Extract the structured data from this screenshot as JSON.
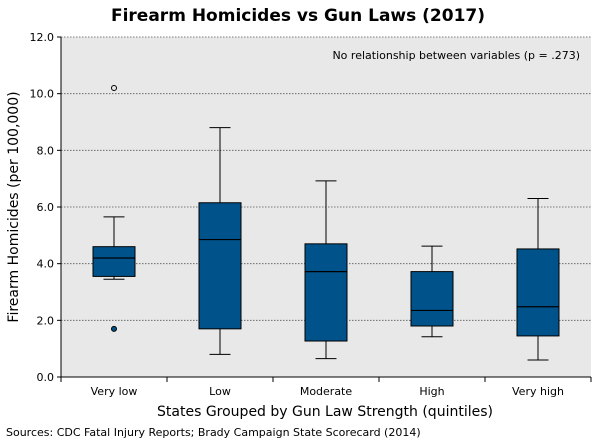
{
  "chart_data": {
    "type": "box",
    "title": "Firearm Homicides vs Gun Laws (2017)",
    "xlabel": "States Grouped by Gun Law Strength (quintiles)",
    "ylabel": "Firearm Homicides (per 100,000)",
    "ylim": [
      0,
      12
    ],
    "yticks": [
      0,
      2,
      4,
      6,
      8,
      10,
      12
    ],
    "ytick_labels": [
      "0.0",
      "2.0",
      "4.0",
      "6.0",
      "8.0",
      "10.0",
      "12.0"
    ],
    "grid": true,
    "annotation": "No relationship between variables (p = .273)",
    "source": "Sources: CDC Fatal Injury Reports; Brady Campaign State Scorecard (2014)",
    "box_color": "#00538A",
    "background_color": "#E8E8E8",
    "categories": [
      "Very low",
      "Low",
      "Moderate",
      "High",
      "Very high"
    ],
    "boxes": [
      {
        "category": "Very low",
        "whisker_low": 3.45,
        "q1": 3.55,
        "median": 4.2,
        "q3": 4.6,
        "whisker_high": 5.65,
        "outliers": [
          10.2,
          1.7
        ],
        "outlier_styles": [
          "hollow",
          "filled"
        ]
      },
      {
        "category": "Low",
        "whisker_low": 0.8,
        "q1": 1.7,
        "median": 4.85,
        "q3": 6.15,
        "whisker_high": 8.8,
        "outliers": [],
        "outlier_styles": []
      },
      {
        "category": "Moderate",
        "whisker_low": 0.65,
        "q1": 1.27,
        "median": 3.72,
        "q3": 4.7,
        "whisker_high": 6.92,
        "outliers": [],
        "outlier_styles": []
      },
      {
        "category": "High",
        "whisker_low": 1.42,
        "q1": 1.8,
        "median": 2.35,
        "q3": 3.72,
        "whisker_high": 4.62,
        "outliers": [],
        "outlier_styles": []
      },
      {
        "category": "Very high",
        "whisker_low": 0.6,
        "q1": 1.45,
        "median": 2.48,
        "q3": 4.52,
        "whisker_high": 6.3,
        "outliers": [],
        "outlier_styles": []
      }
    ]
  }
}
